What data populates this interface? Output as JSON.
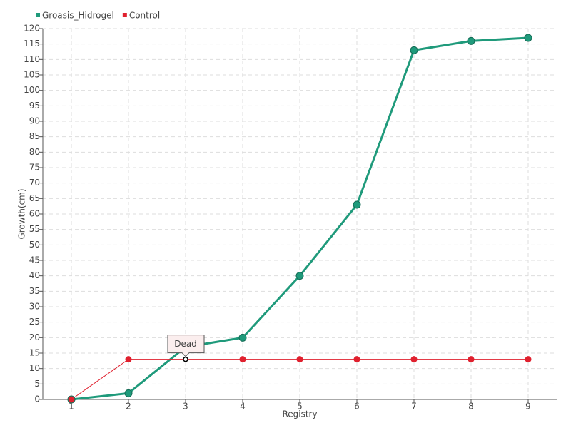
{
  "chart_data": {
    "type": "line",
    "x_label": "Registry",
    "y_label": "Growth(cm)",
    "categories": [
      "1",
      "2",
      "3",
      "4",
      "5",
      "6",
      "7",
      "8",
      "9"
    ],
    "series": [
      {
        "name": "Groasis_Hidrogel",
        "color": "#1f9a7b",
        "values": [
          0,
          2,
          17,
          20,
          40,
          63,
          113,
          116,
          117
        ]
      },
      {
        "name": "Control",
        "color": "#e0202e",
        "values": [
          0,
          13,
          13,
          13,
          13,
          13,
          13,
          13,
          13
        ]
      }
    ],
    "annotation": {
      "text": "Dead",
      "series": 1,
      "index": 2
    },
    "ylim": [
      0,
      120
    ],
    "yticks": [
      0,
      5,
      10,
      15,
      20,
      25,
      30,
      35,
      40,
      45,
      50,
      55,
      60,
      65,
      70,
      75,
      80,
      85,
      90,
      95,
      100,
      105,
      110,
      115,
      120
    ],
    "grid": true,
    "legend": "top-left"
  }
}
